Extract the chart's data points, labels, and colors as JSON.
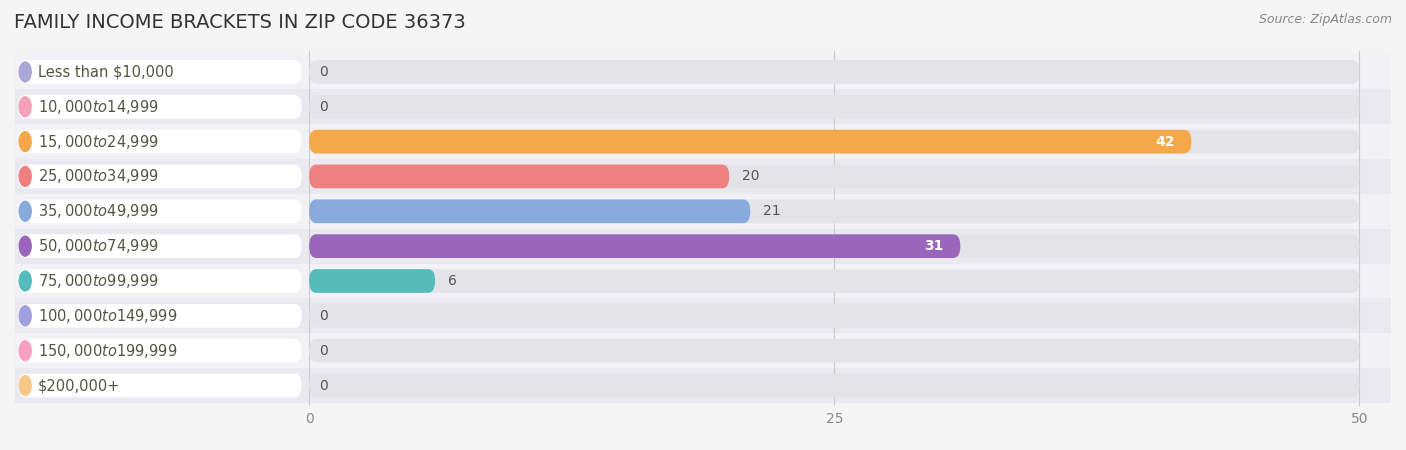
{
  "title": "FAMILY INCOME BRACKETS IN ZIP CODE 36373",
  "source": "Source: ZipAtlas.com",
  "categories": [
    "Less than $10,000",
    "$10,000 to $14,999",
    "$15,000 to $24,999",
    "$25,000 to $34,999",
    "$35,000 to $49,999",
    "$50,000 to $74,999",
    "$75,000 to $99,999",
    "$100,000 to $149,999",
    "$150,000 to $199,999",
    "$200,000+"
  ],
  "values": [
    0,
    0,
    42,
    20,
    21,
    31,
    6,
    0,
    0,
    0
  ],
  "bar_colors": [
    "#a8a8d8",
    "#f4a0b8",
    "#f5a84a",
    "#f08080",
    "#88aadd",
    "#9966bb",
    "#55bbbb",
    "#a0a0e0",
    "#f8a0c0",
    "#f5c88a"
  ],
  "xlim_max": 50,
  "xticks": [
    0,
    25,
    50
  ],
  "background_color": "#f5f5f5",
  "bar_bg_color": "#e4e4e8",
  "label_bg_color": "#ffffff",
  "row_colors": [
    "#f0f0f5",
    "#e8e8ee"
  ],
  "title_fontsize": 14,
  "label_fontsize": 10.5,
  "value_fontsize": 10,
  "source_fontsize": 9
}
